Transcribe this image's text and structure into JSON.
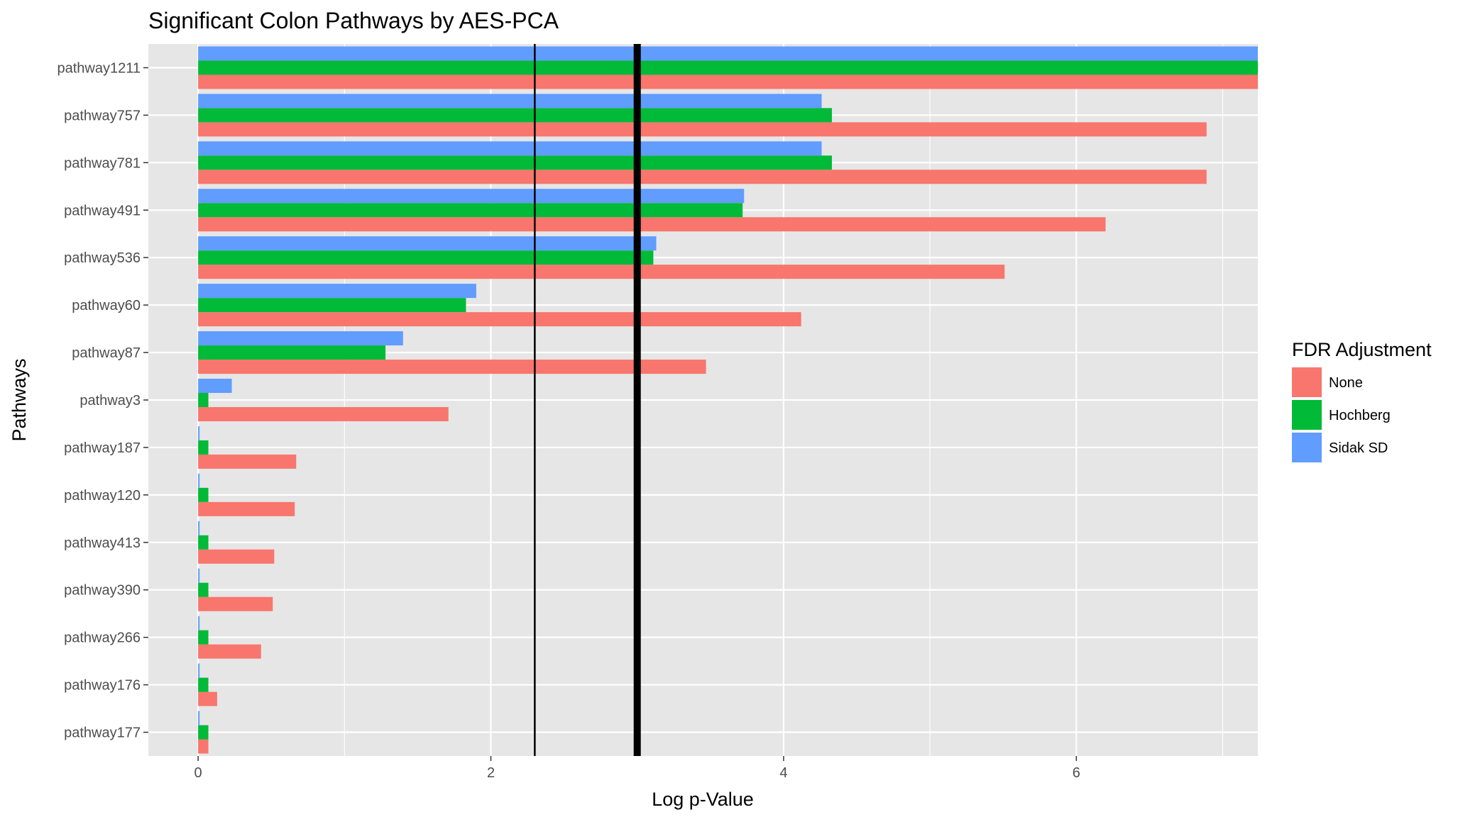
{
  "chart_data": {
    "type": "bar",
    "orientation": "horizontal",
    "title": "Significant Colon Pathways by AES-PCA",
    "xlabel": "Log p-Value",
    "ylabel": "Pathways",
    "xlim": [
      -0.34,
      7.24
    ],
    "x_ticks": [
      0,
      2,
      4,
      6
    ],
    "grid": true,
    "legend_title": "FDR Adjustment",
    "legend_position": "right",
    "categories": [
      "pathway1211",
      "pathway757",
      "pathway781",
      "pathway491",
      "pathway536",
      "pathway60",
      "pathway87",
      "pathway3",
      "pathway187",
      "pathway120",
      "pathway413",
      "pathway390",
      "pathway266",
      "pathway176",
      "pathway177"
    ],
    "series": [
      {
        "name": "None",
        "color": "#F8766D",
        "values": [
          7.24,
          6.89,
          6.89,
          6.2,
          5.51,
          4.12,
          3.47,
          1.71,
          0.67,
          0.66,
          0.52,
          0.51,
          0.43,
          0.13,
          0.07
        ]
      },
      {
        "name": "Hochberg",
        "color": "#00BA38",
        "values": [
          7.24,
          4.33,
          4.33,
          3.72,
          3.11,
          1.83,
          1.28,
          0.07,
          0.07,
          0.07,
          0.07,
          0.07,
          0.07,
          0.07,
          0.07
        ]
      },
      {
        "name": "Sidak SD",
        "color": "#619CFF",
        "values": [
          7.24,
          4.26,
          4.26,
          3.73,
          3.13,
          1.9,
          1.4,
          0.23,
          0.01,
          0.01,
          0.01,
          0.01,
          0.01,
          0.01,
          0.01
        ]
      }
    ],
    "reference_lines": [
      {
        "x": 2.3,
        "weight": "thin",
        "color": "#000000"
      },
      {
        "x": 3.0,
        "weight": "thick",
        "color": "#000000"
      }
    ]
  }
}
